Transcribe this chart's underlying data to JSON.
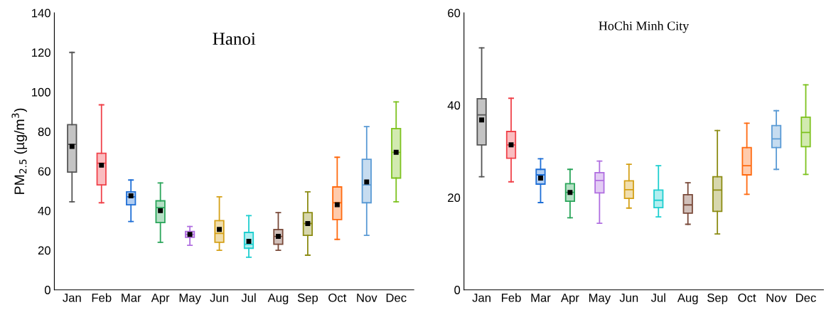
{
  "chart_data": [
    {
      "type": "box",
      "title": "Hanoi",
      "ylabel": "PM$_{2.5}$ (µg/m$^{3}$)",
      "categories": [
        "Jan",
        "Feb",
        "Mar",
        "Apr",
        "May",
        "Jun",
        "Jul",
        "Aug",
        "Sep",
        "Oct",
        "Nov",
        "Dec"
      ],
      "colors": [
        "#555555",
        "#f0434b",
        "#1f6fd6",
        "#2aa55a",
        "#b06ee0",
        "#d4a017",
        "#1fcfd0",
        "#7a4a3a",
        "#8c8c14",
        "#ff6a10",
        "#5b9bd5",
        "#7dc21e"
      ],
      "boxes": [
        {
          "low": 44.5,
          "q1": 59.5,
          "median": 73.5,
          "q3": 83.5,
          "high": 120,
          "mean": 72.5
        },
        {
          "low": 44,
          "q1": 53,
          "median": 64,
          "q3": 69,
          "high": 93.5,
          "mean": 63
        },
        {
          "low": 34.5,
          "q1": 43,
          "median": 47,
          "q3": 49.5,
          "high": 55.5,
          "mean": 47.5
        },
        {
          "low": 24,
          "q1": 34,
          "median": 41.5,
          "q3": 45,
          "high": 54,
          "mean": 40
        },
        {
          "low": 22.5,
          "q1": 26.5,
          "median": 28,
          "q3": 29.5,
          "high": 32,
          "mean": 28
        },
        {
          "low": 20,
          "q1": 24,
          "median": 28.5,
          "q3": 35,
          "high": 47,
          "mean": 30.5
        },
        {
          "low": 16.5,
          "q1": 21,
          "median": 23,
          "q3": 29,
          "high": 37.5,
          "mean": 24.5
        },
        {
          "low": 20,
          "q1": 23,
          "median": 27,
          "q3": 30.5,
          "high": 39,
          "mean": 27
        },
        {
          "low": 17.5,
          "q1": 27.5,
          "median": 33.5,
          "q3": 39,
          "high": 49.5,
          "mean": 33.5
        },
        {
          "low": 25.5,
          "q1": 35.5,
          "median": 44,
          "q3": 52,
          "high": 67,
          "mean": 43
        },
        {
          "low": 27.5,
          "q1": 44,
          "median": 53,
          "q3": 66,
          "high": 82.5,
          "mean": 54.5
        },
        {
          "low": 44.5,
          "q1": 56.5,
          "median": 69.5,
          "q3": 81.5,
          "high": 95,
          "mean": 69.5
        }
      ],
      "ylim": [
        0,
        140
      ],
      "yticks": [
        0,
        20,
        40,
        60,
        80,
        100,
        120,
        140
      ],
      "grid": false,
      "legend": false
    },
    {
      "type": "box",
      "title": "HoChi Minh City",
      "categories": [
        "Jan",
        "Feb",
        "Mar",
        "Apr",
        "May",
        "Jun",
        "Jul",
        "Aug",
        "Sep",
        "Oct",
        "Nov",
        "Dec"
      ],
      "colors": [
        "#555555",
        "#f0434b",
        "#1f6fd6",
        "#2aa55a",
        "#b06ee0",
        "#d4a017",
        "#1fcfd0",
        "#7a4a3a",
        "#8c8c14",
        "#ff6a10",
        "#5b9bd5",
        "#7dc21e"
      ],
      "boxes": [
        {
          "low": 24.5,
          "q1": 31.4,
          "median": 37.9,
          "q3": 41.4,
          "high": 52.4,
          "mean": 36.8
        },
        {
          "low": 23.4,
          "q1": 28.5,
          "median": 31.4,
          "q3": 34.3,
          "high": 41.5,
          "mean": 31.4
        },
        {
          "low": 18.9,
          "q1": 22.9,
          "median": 24.9,
          "q3": 26.1,
          "high": 28.4,
          "mean": 24.2
        },
        {
          "low": 15.6,
          "q1": 19.2,
          "median": 21.1,
          "q3": 23,
          "high": 26.1,
          "mean": 21.1
        },
        {
          "low": 14.4,
          "q1": 21,
          "median": 23.7,
          "q3": 25.4,
          "high": 27.9
        },
        {
          "low": 17.7,
          "q1": 19.8,
          "median": 21.7,
          "q3": 23.6,
          "high": 27.2
        },
        {
          "low": 15.8,
          "q1": 17.8,
          "median": 19.4,
          "q3": 21.6,
          "high": 26.9
        },
        {
          "low": 14.2,
          "q1": 16.6,
          "median": 18.4,
          "q3": 20.6,
          "high": 23.2
        },
        {
          "low": 12.1,
          "q1": 17,
          "median": 21.6,
          "q3": 24.5,
          "high": 34.5
        },
        {
          "low": 20.7,
          "q1": 24.9,
          "median": 26.9,
          "q3": 30.8,
          "high": 36.1
        },
        {
          "low": 26.1,
          "q1": 30.8,
          "median": 32.7,
          "q3": 35.6,
          "high": 38.8
        },
        {
          "low": 25,
          "q1": 31,
          "median": 34.1,
          "q3": 37.4,
          "high": 44.4
        }
      ],
      "ylim": [
        0,
        60
      ],
      "yticks": [
        0,
        20,
        40,
        60
      ],
      "grid": false,
      "legend": false
    }
  ]
}
